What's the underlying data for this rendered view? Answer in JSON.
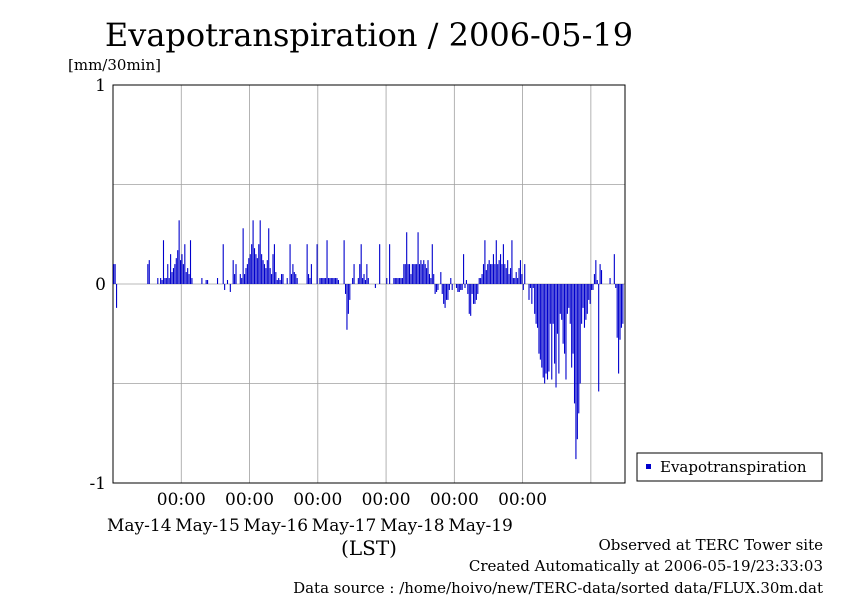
{
  "chart_data": {
    "type": "bar",
    "title": "Evapotranspiration / 2006-05-19",
    "ylabel": "[mm/30min]",
    "xlabel": "(LST)",
    "ylim": [
      -1,
      1
    ],
    "yticks": [
      {
        "value": 1,
        "label": "1"
      },
      {
        "value": 0,
        "label": "0"
      },
      {
        "value": -1,
        "label": "-1"
      }
    ],
    "grid": true,
    "bar_color": "#0000cc",
    "legend": {
      "position": "right",
      "entries": [
        "Evapotranspiration"
      ]
    },
    "x_ticks": [
      {
        "time": "00:00",
        "date": "May-14"
      },
      {
        "time": "00:00",
        "date": "May-15"
      },
      {
        "time": "00:00",
        "date": "May-16"
      },
      {
        "time": "00:00",
        "date": "May-17"
      },
      {
        "time": "00:00",
        "date": "May-18"
      },
      {
        "time": "00:00",
        "date": "May-19"
      }
    ],
    "series": [
      {
        "name": "Evapotranspiration",
        "interval": "30min",
        "start": "2006-05-13T00:00",
        "values": [
          0.1,
          0.1,
          -0.12,
          0,
          0,
          0,
          0,
          0,
          0,
          0,
          0,
          0,
          0,
          0,
          0,
          0,
          0,
          0,
          0,
          0,
          0,
          0,
          0,
          0,
          0.1,
          0.12,
          0,
          0,
          0,
          0,
          0,
          0.03,
          0,
          0.03,
          0.02,
          0.22,
          0.03,
          0.03,
          0.1,
          0.03,
          0.15,
          0.06,
          0.08,
          0.1,
          0.13,
          0.17,
          0.32,
          0.12,
          0.15,
          0.1,
          0.2,
          0.06,
          0.08,
          0.05,
          0.22,
          0.03,
          0,
          0,
          0,
          0,
          0,
          0,
          0.03,
          0,
          0,
          0.02,
          0.02,
          0,
          0,
          0,
          0,
          0,
          0,
          0.03,
          0,
          0,
          0,
          0.2,
          -0.03,
          0,
          0.02,
          0,
          -0.04,
          0,
          0.12,
          0.05,
          0.1,
          0,
          0,
          0.05,
          0.03,
          0.28,
          0.05,
          0.08,
          0.1,
          0.13,
          0.15,
          0.2,
          0.32,
          0.18,
          0.15,
          0.13,
          0.2,
          0.32,
          0.15,
          0.12,
          0.1,
          0.08,
          0.12,
          0.28,
          0.08,
          0.05,
          0.15,
          0.2,
          0.06,
          0.02,
          0.03,
          0.02,
          0.05,
          0.05,
          0,
          0,
          0.03,
          0,
          0.2,
          0.05,
          0.1,
          0.06,
          0.05,
          0.03,
          0,
          0,
          0,
          0,
          0,
          0,
          0.2,
          0.05,
          0.03,
          0.1,
          0,
          0,
          0,
          0.2,
          0,
          0.03,
          0.03,
          0.03,
          0.03,
          0.03,
          0.22,
          0.03,
          0.03,
          0.03,
          0.03,
          0.03,
          0.03,
          0.03,
          0.02,
          0,
          0,
          0,
          0.22,
          -0.05,
          -0.23,
          -0.15,
          -0.08,
          0,
          0.03,
          0.1,
          0,
          0,
          0.03,
          0.1,
          0.2,
          0.03,
          0.05,
          0.02,
          0.1,
          0.03,
          0,
          0,
          0,
          0,
          -0.02,
          0,
          0,
          0.2,
          0,
          0,
          0,
          0,
          0.03,
          0,
          0.2,
          0,
          0,
          0.03,
          0.03,
          0.03,
          0.03,
          0.03,
          0.03,
          0.03,
          0.1,
          0.1,
          0.26,
          0.1,
          0.1,
          0.05,
          0.1,
          0.1,
          0.1,
          0.1,
          0.26,
          0.1,
          0.12,
          0.1,
          0.12,
          0.1,
          0.08,
          0.12,
          0.05,
          0.03,
          0.2,
          0.05,
          -0.05,
          -0.04,
          -0.03,
          0,
          0.06,
          -0.05,
          -0.1,
          -0.12,
          -0.08,
          -0.08,
          -0.03,
          0.03,
          -0.03,
          0,
          0,
          -0.02,
          -0.04,
          -0.04,
          -0.03,
          -0.03,
          0.15,
          -0.02,
          0.02,
          -0.05,
          -0.15,
          -0.16,
          -0.05,
          -0.1,
          -0.1,
          -0.08,
          -0.05,
          0.03,
          0.03,
          0.05,
          0.1,
          0.22,
          0.07,
          0.1,
          0.12,
          0.1,
          0.1,
          0.15,
          0.1,
          0.22,
          0.1,
          0.12,
          0.15,
          0.1,
          0.2,
          0.1,
          0.08,
          0.12,
          0.05,
          0.08,
          0.22,
          0.03,
          0.03,
          0.06,
          0.03,
          0.08,
          0.12,
          0.05,
          -0.03,
          0.1,
          0,
          0,
          -0.08,
          -0.02,
          -0.1,
          -0.02,
          -0.15,
          -0.2,
          -0.22,
          -0.35,
          -0.38,
          -0.42,
          -0.47,
          -0.5,
          -0.45,
          -0.48,
          -0.44,
          -0.2,
          -0.48,
          -0.2,
          -0.4,
          -0.52,
          -0.25,
          -0.45,
          -0.15,
          -0.18,
          -0.3,
          -0.35,
          -0.48,
          -0.15,
          -0.12,
          -0.2,
          -0.42,
          -0.35,
          -0.6,
          -0.88,
          -0.78,
          -0.65,
          -0.5,
          -0.2,
          -0.12,
          -0.22,
          -0.18,
          -0.15,
          -0.08,
          -0.1,
          -0.03,
          -0.03,
          0.05,
          0.12,
          0.02,
          -0.54,
          0.1,
          0.07,
          0,
          0,
          0,
          0,
          0,
          0.03,
          0,
          0,
          0.15,
          -0.02,
          -0.27,
          -0.45,
          -0.28,
          -0.22,
          -0.2,
          0
        ]
      }
    ]
  },
  "footer": {
    "line1": "Observed at TERC Tower site",
    "line2": "Created Automatically at 2006-05-19/23:33:03",
    "line3": "Data source : /home/hoivo/new/TERC-data/sorted  data/FLUX.30m.dat"
  }
}
